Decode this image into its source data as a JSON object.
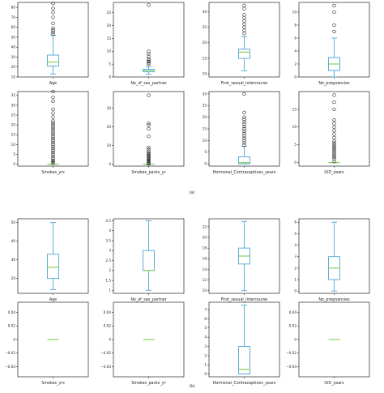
{
  "captions": {
    "a": "(a)",
    "b": "(b)"
  },
  "colors": {
    "box": "#4da6d9",
    "median": "#7ccc4a",
    "axes": "#000000",
    "flier": "#000000"
  },
  "chart_data": [
    {
      "type": "box",
      "panel": "a",
      "xlabel": "Age",
      "ylim": [
        10,
        85
      ],
      "yticks": [
        10,
        20,
        30,
        40,
        50,
        60,
        70,
        80
      ],
      "box": {
        "whislo": 13,
        "q1": 21,
        "med": 25,
        "q3": 32,
        "whishi": 52
      },
      "fliers": [
        53,
        55,
        57,
        59,
        64,
        70,
        75,
        79,
        84
      ]
    },
    {
      "type": "box",
      "panel": "a",
      "xlabel": "No_of_sex_partner",
      "ylim": [
        0,
        29
      ],
      "yticks": [
        0,
        5,
        10,
        15,
        20,
        25
      ],
      "box": {
        "whislo": 1,
        "q1": 2,
        "med": 2.5,
        "q3": 3,
        "whishi": 4
      },
      "fliers": [
        5,
        5.5,
        6,
        6.5,
        7,
        8,
        9,
        10,
        28
      ]
    },
    {
      "type": "box",
      "panel": "a",
      "xlabel": "First_sexual_intercourse",
      "ylim": [
        9,
        33
      ],
      "yticks": [
        10,
        15,
        20,
        25,
        30
      ],
      "box": {
        "whislo": 11,
        "q1": 15,
        "med": 17,
        "q3": 18,
        "whishi": 22
      },
      "fliers": [
        23,
        24,
        25,
        26,
        27,
        28,
        29,
        31,
        32
      ]
    },
    {
      "type": "box",
      "panel": "a",
      "xlabel": "No_pregnancies",
      "ylim": [
        0,
        11.5
      ],
      "yticks": [
        0,
        2,
        4,
        6,
        8,
        10
      ],
      "box": {
        "whislo": 0,
        "q1": 1,
        "med": 2,
        "q3": 3,
        "whishi": 6
      },
      "fliers": [
        7,
        8,
        10,
        11
      ]
    },
    {
      "type": "box",
      "panel": "a",
      "xlabel": "Smokes_yrs",
      "ylim": [
        -1,
        37
      ],
      "yticks": [
        0,
        5,
        10,
        15,
        20,
        25,
        30,
        35
      ],
      "box": {
        "whislo": 0,
        "q1": 0,
        "med": 0,
        "q3": 0,
        "whishi": 0
      },
      "fliers": [
        0.5,
        1,
        1.5,
        2,
        3,
        4,
        5,
        6,
        7,
        8,
        9,
        10,
        11,
        12,
        13,
        14,
        15,
        16,
        17,
        18,
        19,
        20,
        21,
        22,
        24,
        26,
        28,
        32,
        34,
        37
      ]
    },
    {
      "type": "box",
      "panel": "a",
      "xlabel": "Smokes_packs_yr",
      "ylim": [
        -1,
        39
      ],
      "yticks": [
        0,
        10,
        20,
        30
      ],
      "box": {
        "whislo": 0,
        "q1": 0,
        "med": 0,
        "q3": 0,
        "whishi": 0
      },
      "fliers": [
        0.3,
        0.6,
        1,
        1.5,
        2,
        2.5,
        3,
        3.5,
        4,
        4.5,
        5,
        5.5,
        6,
        7,
        8,
        9,
        15,
        19,
        21,
        22,
        37
      ]
    },
    {
      "type": "box",
      "panel": "a",
      "xlabel": "Hormonal_Contraceptives_years",
      "ylim": [
        -1,
        31
      ],
      "yticks": [
        0,
        5,
        10,
        15,
        20,
        25,
        30
      ],
      "box": {
        "whislo": 0,
        "q1": 0,
        "med": 0.5,
        "q3": 3,
        "whishi": 7.5
      },
      "fliers": [
        8,
        9,
        10,
        11,
        12,
        13,
        14,
        15,
        16,
        17,
        18,
        19,
        20,
        22,
        30
      ]
    },
    {
      "type": "box",
      "panel": "a",
      "xlabel": "IUD_years",
      "ylim": [
        -1,
        20
      ],
      "yticks": [
        0,
        5,
        10,
        15
      ],
      "box": {
        "whislo": 0,
        "q1": 0,
        "med": 0,
        "q3": 0,
        "whishi": 0
      },
      "fliers": [
        0.3,
        1,
        1.5,
        2,
        2.5,
        3,
        3.5,
        4,
        4.5,
        5,
        5.5,
        6,
        7,
        8,
        9,
        10,
        11,
        12,
        15,
        17,
        19
      ]
    },
    {
      "type": "box",
      "panel": "b",
      "xlabel": "Age",
      "ylim": [
        12,
        52
      ],
      "yticks": [
        20,
        30,
        40,
        50
      ],
      "box": {
        "whislo": 14,
        "q1": 20,
        "med": 26,
        "q3": 33,
        "whishi": 50
      },
      "fliers": []
    },
    {
      "type": "box",
      "panel": "b",
      "xlabel": "No_of_sex_partner",
      "ylim": [
        0.85,
        4.6
      ],
      "yticks": [
        1.0,
        1.5,
        2.0,
        2.5,
        3.0,
        3.5,
        4.0,
        4.5
      ],
      "box": {
        "whislo": 1,
        "q1": 2,
        "med": 2,
        "q3": 3,
        "whishi": 4.5
      },
      "fliers": []
    },
    {
      "type": "box",
      "panel": "b",
      "xlabel": "First_sexual_intercourse",
      "ylim": [
        9.5,
        23.5
      ],
      "yticks": [
        10,
        12,
        14,
        16,
        18,
        20,
        22
      ],
      "box": {
        "whislo": 10,
        "q1": 15,
        "med": 16.5,
        "q3": 18,
        "whishi": 23
      },
      "fliers": []
    },
    {
      "type": "box",
      "panel": "b",
      "xlabel": "No_pregnancies",
      "ylim": [
        -0.2,
        6.3
      ],
      "yticks": [
        0,
        1,
        2,
        3,
        4,
        5,
        6
      ],
      "box": {
        "whislo": 0,
        "q1": 1,
        "med": 2,
        "q3": 3,
        "whishi": 6
      },
      "fliers": []
    },
    {
      "type": "box",
      "panel": "b",
      "xlabel": "Smokes_yrs",
      "ylim": [
        -0.055,
        0.055
      ],
      "yticks": [
        -0.04,
        -0.02,
        0.0,
        0.02,
        0.04
      ],
      "box": {
        "whislo": 0,
        "q1": 0,
        "med": 0,
        "q3": 0,
        "whishi": 0
      },
      "fliers": []
    },
    {
      "type": "box",
      "panel": "b",
      "xlabel": "Smokes_packs_yr",
      "ylim": [
        -0.055,
        0.055
      ],
      "yticks": [
        -0.04,
        -0.02,
        0.0,
        0.02,
        0.04
      ],
      "box": {
        "whislo": 0,
        "q1": 0,
        "med": 0,
        "q3": 0,
        "whishi": 0
      },
      "fliers": []
    },
    {
      "type": "box",
      "panel": "b",
      "xlabel": "Hormonal_Contraceptives_years",
      "ylim": [
        -0.3,
        7.8
      ],
      "yticks": [
        0,
        1,
        2,
        3,
        4,
        5,
        6,
        7
      ],
      "box": {
        "whislo": 0,
        "q1": 0,
        "med": 0.5,
        "q3": 3,
        "whishi": 7.5
      },
      "fliers": []
    },
    {
      "type": "box",
      "panel": "b",
      "xlabel": "IUD_years",
      "ylim": [
        -0.055,
        0.055
      ],
      "yticks": [
        -0.04,
        -0.02,
        0.0,
        0.02,
        0.04
      ],
      "box": {
        "whislo": 0,
        "q1": 0,
        "med": 0,
        "q3": 0,
        "whishi": 0
      },
      "fliers": []
    }
  ]
}
